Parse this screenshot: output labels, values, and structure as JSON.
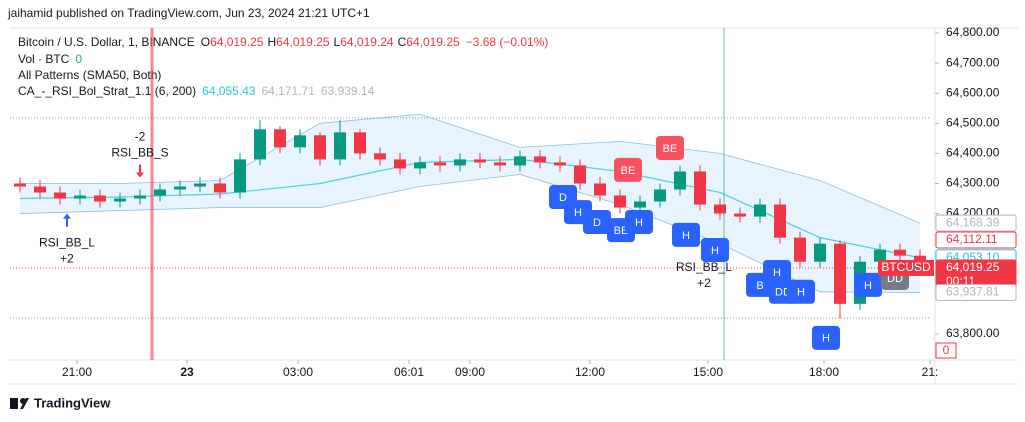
{
  "header": {
    "published": "jaihamid published on TradingView.com, Jun 23, 2024 21:21 UTC+1",
    "footer": "TradingView"
  },
  "legend": {
    "symbol": "Bitcoin / U.S. Dollar, 1, BINANCE",
    "ohlc": [
      {
        "key": "O",
        "value": "64,019.25"
      },
      {
        "key": "H",
        "value": "64,019.25"
      },
      {
        "key": "L",
        "value": "64,019.24"
      },
      {
        "key": "C",
        "value": "64,019.25"
      }
    ],
    "change": "−3.68 (−0.01%)",
    "volume": "Vol · BTC",
    "volume_value": "0",
    "patterns": "All Patterns (SMA50, Both)",
    "strategy": "CA_-_RSI_Bol_Strat_1.1 (6, 200)",
    "strategy_values": [
      {
        "text": "64,055.43",
        "color": "#26c6da"
      },
      {
        "text": "64,171.71",
        "color": "#b2b5be"
      },
      {
        "text": "63,939.14",
        "color": "#b2b5be"
      }
    ]
  },
  "chart_data": {
    "type": "candlestick",
    "symbol_tag": "BTCUSD",
    "countdown": "00:11",
    "xlim": [
      -0.5,
      45.5
    ],
    "xticks": [
      {
        "value": 2.85,
        "label": "21:00"
      },
      {
        "value": 8.35,
        "label": "23"
      },
      {
        "value": 13.9,
        "label": "03:00"
      },
      {
        "value": 19.45,
        "label": "06:01"
      },
      {
        "value": 22.5,
        "label": "09:00"
      },
      {
        "value": 28.5,
        "label": "12:00"
      },
      {
        "value": 34.4,
        "label": "15:00"
      },
      {
        "value": 40.2,
        "label": "18:00"
      },
      {
        "value": 45.5,
        "label": "21:"
      }
    ],
    "ylim": [
      63720,
      64830
    ],
    "yticks": [
      {
        "value": 64800,
        "label": "64,800.00"
      },
      {
        "value": 64700,
        "label": "64,700.00"
      },
      {
        "value": 64600,
        "label": "64,600.00"
      },
      {
        "value": 64500,
        "label": "64,500.00"
      },
      {
        "value": 64400,
        "label": "64,400.00"
      },
      {
        "value": 64300,
        "label": "64,300.00"
      },
      {
        "value": 64200,
        "label": "64,200.00"
      },
      {
        "value": 63800,
        "label": "63,800.00"
      }
    ],
    "open": [
      64300,
      64290,
      64270,
      64250,
      64260,
      64240,
      64250,
      64260,
      64280,
      64290,
      64300,
      64270,
      64380,
      64480,
      64420,
      64460,
      64380,
      64470,
      64400,
      64380,
      64350,
      64370,
      64360,
      64380,
      64370,
      64360,
      64390,
      64370,
      64360,
      64300,
      64260,
      64220,
      64240,
      64280,
      64340,
      64230,
      64200,
      64190,
      64230,
      64120,
      64040,
      64100,
      63900,
      64040,
      64080,
      64060
    ],
    "high": [
      64320,
      64310,
      64290,
      64280,
      64280,
      64270,
      64280,
      64300,
      64310,
      64320,
      64320,
      64400,
      64510,
      64490,
      64480,
      64470,
      64510,
      64480,
      64420,
      64400,
      64390,
      64390,
      64400,
      64400,
      64390,
      64410,
      64410,
      64390,
      64380,
      64320,
      64280,
      64260,
      64300,
      64360,
      64360,
      64250,
      64220,
      64250,
      64250,
      64140,
      64120,
      64110,
      64060,
      64100,
      64100,
      64080
    ],
    "low": [
      64270,
      64250,
      64230,
      64230,
      64220,
      64220,
      64230,
      64240,
      64260,
      64270,
      64250,
      64250,
      64360,
      64400,
      64400,
      64360,
      64360,
      64380,
      64360,
      64330,
      64330,
      64340,
      64340,
      64350,
      64340,
      64340,
      64350,
      64340,
      64280,
      64240,
      64200,
      64200,
      64220,
      64260,
      64210,
      64180,
      64170,
      64170,
      64100,
      64020,
      64020,
      63850,
      63880,
      64020,
      64040,
      64000
    ],
    "close": [
      64290,
      64270,
      64250,
      64260,
      64240,
      64250,
      64260,
      64280,
      64290,
      64300,
      64270,
      64380,
      64480,
      64420,
      64460,
      64380,
      64470,
      64400,
      64380,
      64350,
      64370,
      64360,
      64380,
      64370,
      64360,
      64390,
      64370,
      64360,
      64300,
      64260,
      64220,
      64240,
      64280,
      64340,
      64230,
      64200,
      64190,
      64230,
      64120,
      64040,
      64100,
      63900,
      64040,
      64080,
      64060,
      64019.25
    ],
    "up_color": "#089981",
    "down_color": "#f23645",
    "band": {
      "x": [
        0,
        5,
        10,
        15,
        20,
        25,
        30,
        35,
        40,
        45
      ],
      "upper": [
        64300,
        64300,
        64310,
        64500,
        64530,
        64420,
        64440,
        64400,
        64310,
        64168.39
      ],
      "mid": [
        64250,
        64255,
        64265,
        64300,
        64370,
        64380,
        64340,
        64270,
        64120,
        64053.1
      ],
      "lower": [
        64200,
        64210,
        64220,
        64220,
        64290,
        64330,
        64230,
        64100,
        63940,
        63937.81
      ]
    },
    "hlines": [
      64518,
      63853
    ],
    "vlines": [
      {
        "x": 6.6,
        "color": "#f23645"
      },
      {
        "x": 35.2,
        "color": "#089981"
      }
    ],
    "signals": [
      {
        "x": 2.35,
        "price": 64200,
        "dir": "up",
        "name": "RSI_BB_L",
        "qty": "+2",
        "color": "#2962ff"
      },
      {
        "x": 6.0,
        "price": 64320,
        "dir": "down",
        "name": "RSI_BB_S",
        "qty": "-2",
        "color": "#f23645"
      },
      {
        "x": 34.2,
        "price": 64120,
        "dir": "up",
        "name": "RSI_BB_L",
        "qty": "+2",
        "color": "#2962ff"
      }
    ],
    "patterns": [
      {
        "label": "D",
        "x": 27.15,
        "price": 64255,
        "color": "#2962ff"
      },
      {
        "label": "H",
        "x": 27.9,
        "price": 64205,
        "color": "#2962ff"
      },
      {
        "label": "D",
        "x": 28.85,
        "price": 64172,
        "color": "#2962ff"
      },
      {
        "label": "BE",
        "x": 30.05,
        "price": 64145,
        "color": "#2962ff"
      },
      {
        "label": "H",
        "x": 30.95,
        "price": 64172,
        "color": "#2962ff"
      },
      {
        "label": "BE",
        "x": 30.4,
        "price": 64345,
        "color": "#f7525f"
      },
      {
        "label": "BE",
        "x": 32.5,
        "price": 64418,
        "color": "#f7525f"
      },
      {
        "label": "H",
        "x": 33.3,
        "price": 64129,
        "color": "#2962ff"
      },
      {
        "label": "H",
        "x": 34.75,
        "price": 64079,
        "color": "#2962ff"
      },
      {
        "label": "B",
        "x": 37.0,
        "price": 63963,
        "color": "#2962ff"
      },
      {
        "label": "H",
        "x": 37.85,
        "price": 64006,
        "color": "#2962ff"
      },
      {
        "label": "DD",
        "x": 38.15,
        "price": 63940,
        "color": "#2962ff"
      },
      {
        "label": "H",
        "x": 39.05,
        "price": 63940,
        "color": "#2962ff"
      },
      {
        "label": "H",
        "x": 40.3,
        "price": 63787,
        "color": "#2962ff"
      },
      {
        "label": "H",
        "x": 42.4,
        "price": 63963,
        "color": "#2962ff"
      },
      {
        "label": "DD",
        "x": 43.75,
        "price": 63986,
        "color": "#787b86"
      }
    ],
    "price_labels": [
      {
        "value": 64168.39,
        "label": "64,168.39",
        "color": "#b2b5be",
        "fill": false
      },
      {
        "value": 64112.11,
        "label": "64,112.11",
        "color": "#f23645",
        "fill": false
      },
      {
        "value": 64053.1,
        "label": "64,053.10",
        "color": "#26c6da",
        "fill": false
      },
      {
        "value": 64019.25,
        "label": "64,019.25",
        "color": "#f23645",
        "fill": true
      },
      {
        "value": 63937.81,
        "label": "63,937.81",
        "color": "#b2b5be",
        "fill": false
      }
    ],
    "volume_label": "0"
  }
}
